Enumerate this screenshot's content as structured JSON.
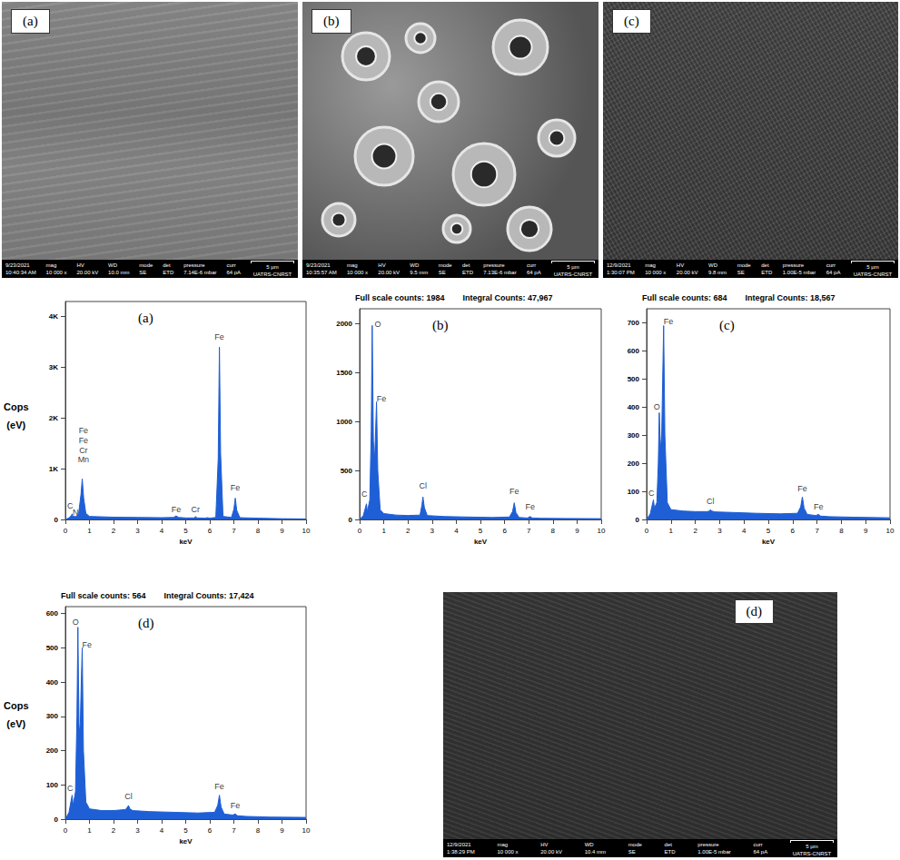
{
  "info_headers": [
    "mag",
    "HV",
    "WD",
    "mode",
    "det",
    "pressure",
    "curr"
  ],
  "sem_images": [
    {
      "label": "(a)",
      "date": "9/23/2021",
      "time": "10:40:34 AM",
      "info": [
        "10 000 x",
        "20.00 kV",
        "10.0 mm",
        "SE",
        "ETD",
        "7.14E-6 mbar",
        "64 pA"
      ],
      "scale": "5 µm",
      "lab": "UATRS-CNRST"
    },
    {
      "label": "(b)",
      "date": "9/23/2021",
      "time": "10:35:57 AM",
      "info": [
        "10 000 x",
        "20.00 kV",
        "9.5 mm",
        "SE",
        "ETD",
        "7.13E-6 mbar",
        "64 pA"
      ],
      "scale": "5 µm",
      "lab": "UATRS-CNRST"
    },
    {
      "label": "(c)",
      "date": "12/9/2021",
      "time": "1:30:07 PM",
      "info": [
        "10 000 x",
        "20.00 kV",
        "9.8 mm",
        "SE",
        "ETD",
        "1.00E-5 mbar",
        "64 pA"
      ],
      "scale": "5 µm",
      "lab": "UATRS-CNRST"
    },
    {
      "label": "(d)",
      "date": "12/9/2021",
      "time": "1:38:29 PM",
      "info": [
        "10 000 x",
        "20.00 kV",
        "10.4 mm",
        "SE",
        "ETD",
        "1.00E-5 mbar",
        "64 pA"
      ],
      "scale": "5 µm",
      "lab": "UATRS-CNRST"
    }
  ],
  "chart_data": [
    {
      "type": "area",
      "label": "(a)",
      "color": "#1f5fd6",
      "y_label": [
        "Cops",
        "(eV)"
      ],
      "x_label": "keV",
      "xlim": [
        0,
        10
      ],
      "xticks": [
        0,
        1,
        2,
        3,
        4,
        5,
        6,
        7,
        8,
        9,
        10
      ],
      "ylim": [
        0,
        4300
      ],
      "yticks": [
        0,
        {
          "value": 1000,
          "label": "1K"
        },
        {
          "value": 2000,
          "label": "2K"
        },
        {
          "value": 3000,
          "label": "3K"
        },
        {
          "value": 4000,
          "label": "4K"
        }
      ],
      "x": [
        0,
        0.15,
        0.25,
        0.28,
        0.32,
        0.37,
        0.39,
        0.43,
        0.55,
        0.65,
        0.7,
        0.76,
        0.85,
        1.0,
        2.0,
        3.0,
        4.0,
        4.5,
        4.6,
        4.7,
        5.0,
        5.35,
        5.41,
        5.47,
        5.8,
        5.9,
        6.0,
        6.25,
        6.35,
        6.4,
        6.45,
        6.55,
        6.9,
        7.0,
        7.06,
        7.12,
        7.25,
        8.0,
        9.0,
        10.0
      ],
      "values": [
        0,
        30,
        80,
        110,
        60,
        60,
        70,
        50,
        120,
        500,
        800,
        420,
        120,
        60,
        45,
        40,
        35,
        40,
        70,
        40,
        30,
        30,
        55,
        30,
        25,
        35,
        25,
        40,
        1200,
        3400,
        1300,
        60,
        40,
        200,
        420,
        180,
        35,
        25,
        15,
        10
      ],
      "annotations": [
        {
          "text": "C",
          "x": 0.2,
          "y": 260
        },
        {
          "text": "N",
          "x": 0.42,
          "y": 150
        },
        {
          "text": "Fe",
          "x": 0.75,
          "y": 1750
        },
        {
          "text": "Fe",
          "x": 0.75,
          "y": 1560
        },
        {
          "text": "Cr",
          "x": 0.75,
          "y": 1370
        },
        {
          "text": "Mn",
          "x": 0.75,
          "y": 1180
        },
        {
          "text": "Fe",
          "x": 4.6,
          "y": 200
        },
        {
          "text": "Cr",
          "x": 5.41,
          "y": 200
        },
        {
          "text": "Fe",
          "x": 6.4,
          "y": 3600
        },
        {
          "text": "Fe",
          "x": 7.06,
          "y": 620
        }
      ]
    },
    {
      "type": "area",
      "label": "(b)",
      "color": "#1f5fd6",
      "x_label": "keV",
      "header": [
        "Full scale counts: 1984",
        "Integral Counts: 47,967"
      ],
      "xlim": [
        0,
        10
      ],
      "xticks": [
        0,
        1,
        2,
        3,
        4,
        5,
        6,
        7,
        8,
        9,
        10
      ],
      "ylim": [
        0,
        2150
      ],
      "yticks": [
        0,
        500,
        1000,
        1500,
        2000
      ],
      "x": [
        0,
        0.15,
        0.24,
        0.28,
        0.32,
        0.42,
        0.48,
        0.52,
        0.57,
        0.62,
        0.66,
        0.7,
        0.75,
        0.85,
        1.0,
        1.5,
        2.0,
        2.5,
        2.58,
        2.62,
        2.68,
        2.8,
        3.5,
        4.5,
        5.5,
        6.2,
        6.33,
        6.4,
        6.47,
        6.6,
        6.95,
        7.06,
        7.15,
        7.5,
        8.5,
        10.0
      ],
      "values": [
        0,
        40,
        120,
        160,
        80,
        200,
        900,
        1980,
        800,
        600,
        900,
        1200,
        500,
        100,
        60,
        45,
        40,
        45,
        150,
        230,
        120,
        40,
        30,
        25,
        20,
        25,
        80,
        170,
        70,
        20,
        15,
        30,
        15,
        12,
        10,
        8
      ],
      "annotations": [
        {
          "text": "C",
          "x": 0.2,
          "y": 260
        },
        {
          "text": "O",
          "x": 0.75,
          "y": 1990
        },
        {
          "text": "Fe",
          "x": 0.9,
          "y": 1230
        },
        {
          "text": "Cl",
          "x": 2.62,
          "y": 340
        },
        {
          "text": "Fe",
          "x": 6.4,
          "y": 290
        },
        {
          "text": "Fe",
          "x": 7.06,
          "y": 130
        }
      ]
    },
    {
      "type": "area",
      "label": "(c)",
      "color": "#1f5fd6",
      "x_label": "keV",
      "header": [
        "Full scale counts: 684",
        "Integral Counts: 18,567"
      ],
      "xlim": [
        0,
        10
      ],
      "xticks": [
        0,
        1,
        2,
        3,
        4,
        5,
        6,
        7,
        8,
        9,
        10
      ],
      "ylim": [
        0,
        750
      ],
      "yticks": [
        0,
        100,
        200,
        300,
        400,
        500,
        600,
        700
      ],
      "x": [
        0,
        0.15,
        0.24,
        0.28,
        0.32,
        0.42,
        0.48,
        0.52,
        0.57,
        0.62,
        0.66,
        0.7,
        0.75,
        0.85,
        1.0,
        1.5,
        2.0,
        2.5,
        2.58,
        2.62,
        2.68,
        2.8,
        3.5,
        4.5,
        5.5,
        6.2,
        6.33,
        6.4,
        6.47,
        6.6,
        6.95,
        7.06,
        7.15,
        7.5,
        8.5,
        10.0
      ],
      "values": [
        0,
        20,
        55,
        70,
        40,
        60,
        200,
        380,
        250,
        300,
        500,
        690,
        300,
        60,
        35,
        30,
        28,
        28,
        30,
        35,
        30,
        27,
        25,
        22,
        20,
        22,
        45,
        80,
        40,
        18,
        14,
        18,
        12,
        10,
        8,
        6
      ],
      "annotations": [
        {
          "text": "C",
          "x": 0.2,
          "y": 95
        },
        {
          "text": "O",
          "x": 0.42,
          "y": 400
        },
        {
          "text": "Fe",
          "x": 0.9,
          "y": 705
        },
        {
          "text": "Cl",
          "x": 2.62,
          "y": 65
        },
        {
          "text": "Fe",
          "x": 6.4,
          "y": 110
        },
        {
          "text": "Fe",
          "x": 7.06,
          "y": 45
        }
      ]
    },
    {
      "type": "area",
      "label": "(d)",
      "color": "#1f5fd6",
      "y_label": [
        "Cops",
        "(eV)"
      ],
      "x_label": "keV",
      "header": [
        "Full scale counts: 564",
        "Integral Counts: 17,424"
      ],
      "xlim": [
        0,
        10
      ],
      "xticks": [
        0,
        1,
        2,
        3,
        4,
        5,
        6,
        7,
        8,
        9,
        10
      ],
      "ylim": [
        0,
        620
      ],
      "yticks": [
        0,
        100,
        200,
        300,
        400,
        500,
        600
      ],
      "x": [
        0,
        0.15,
        0.24,
        0.28,
        0.32,
        0.42,
        0.48,
        0.52,
        0.57,
        0.62,
        0.66,
        0.7,
        0.75,
        0.85,
        1.0,
        1.5,
        2.0,
        2.5,
        2.58,
        2.62,
        2.68,
        2.8,
        3.5,
        4.5,
        5.5,
        6.2,
        6.33,
        6.4,
        6.47,
        6.6,
        6.95,
        7.06,
        7.15,
        7.5,
        8.5,
        10.0
      ],
      "values": [
        0,
        20,
        55,
        70,
        40,
        80,
        300,
        560,
        250,
        280,
        400,
        500,
        200,
        50,
        30,
        25,
        25,
        28,
        35,
        40,
        30,
        25,
        22,
        20,
        18,
        20,
        40,
        70,
        35,
        15,
        12,
        15,
        10,
        8,
        6,
        5
      ],
      "annotations": [
        {
          "text": "C",
          "x": 0.2,
          "y": 90
        },
        {
          "text": "O",
          "x": 0.42,
          "y": 575
        },
        {
          "text": "Fe",
          "x": 0.9,
          "y": 510
        },
        {
          "text": "Cl",
          "x": 2.62,
          "y": 65
        },
        {
          "text": "Fe",
          "x": 6.4,
          "y": 95
        },
        {
          "text": "Fe",
          "x": 7.06,
          "y": 40
        }
      ]
    }
  ]
}
